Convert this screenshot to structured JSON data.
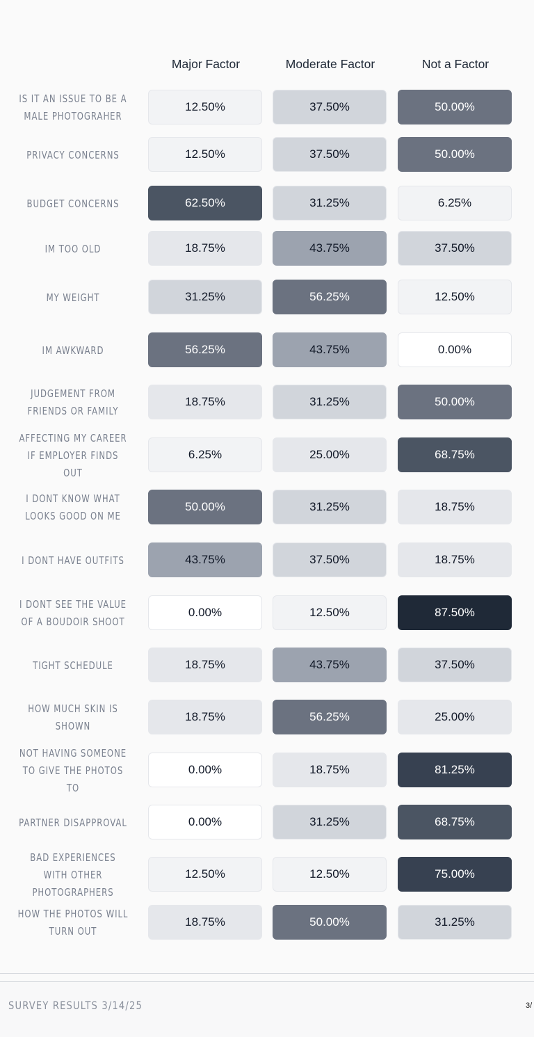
{
  "columns": [
    "Major Factor",
    "Moderate Factor",
    "Not a Factor"
  ],
  "rows": [
    {
      "label": "IS IT AN ISSUE TO BE A MALE PHOTOGRAHER",
      "cells": [
        "12.50%",
        "37.50%",
        "50.00%"
      ]
    },
    {
      "label": "PRIVACY CONCERNS",
      "cells": [
        "12.50%",
        "37.50%",
        "50.00%"
      ]
    },
    {
      "label": "BUDGET CONCERNS",
      "cells": [
        "62.50%",
        "31.25%",
        "6.25%"
      ]
    },
    {
      "label": "IM TOO OLD",
      "cells": [
        "18.75%",
        "43.75%",
        "37.50%"
      ]
    },
    {
      "label": "MY WEIGHT",
      "cells": [
        "31.25%",
        "56.25%",
        "12.50%"
      ]
    },
    {
      "label": "IM AWKWARD",
      "cells": [
        "56.25%",
        "43.75%",
        "0.00%"
      ]
    },
    {
      "label": "JUDGEMENT FROM FRIENDS OR FAMILY",
      "cells": [
        "18.75%",
        "31.25%",
        "50.00%"
      ]
    },
    {
      "label": "AFFECTING MY CAREER IF EMPLOYER FINDS OUT",
      "cells": [
        "6.25%",
        "25.00%",
        "68.75%"
      ]
    },
    {
      "label": "I DONT KNOW WHAT LOOKS GOOD ON ME",
      "cells": [
        "50.00%",
        "31.25%",
        "18.75%"
      ]
    },
    {
      "label": "I DONT HAVE OUTFITS",
      "cells": [
        "43.75%",
        "37.50%",
        "18.75%"
      ]
    },
    {
      "label": "I DONT SEE THE VALUE OF A BOUDOIR SHOOT",
      "cells": [
        "0.00%",
        "12.50%",
        "87.50%"
      ]
    },
    {
      "label": "TIGHT SCHEDULE",
      "cells": [
        "18.75%",
        "43.75%",
        "37.50%"
      ]
    },
    {
      "label": "HOW MUCH SKIN IS SHOWN",
      "cells": [
        "18.75%",
        "56.25%",
        "25.00%"
      ]
    },
    {
      "label": "NOT HAVING SOMEONE TO GIVE THE PHOTOS TO",
      "cells": [
        "0.00%",
        "18.75%",
        "81.25%"
      ]
    },
    {
      "label": "PARTNER DISAPPROVAL",
      "cells": [
        "0.00%",
        "31.25%",
        "68.75%"
      ]
    },
    {
      "label": "BAD EXPERIENCES WITH OTHER PHOTOGRAPHERS",
      "cells": [
        "12.50%",
        "12.50%",
        "75.00%"
      ]
    },
    {
      "label": "HOW THE PHOTOS WILL TURN OUT",
      "cells": [
        "18.75%",
        "50.00%",
        "31.25%"
      ]
    }
  ],
  "footer": {
    "text": "SURVEY RESULTS 3/14/25",
    "page": "3/"
  },
  "chart_data": {
    "type": "heatmap",
    "x_categories": [
      "Major Factor",
      "Moderate Factor",
      "Not a Factor"
    ],
    "y_categories": [
      "IS IT AN ISSUE TO BE A MALE PHOTOGRAHER",
      "PRIVACY CONCERNS",
      "BUDGET CONCERNS",
      "IM TOO OLD",
      "MY WEIGHT",
      "IM AWKWARD",
      "JUDGEMENT FROM FRIENDS OR FAMILY",
      "AFFECTING MY CAREER IF EMPLOYER FINDS OUT",
      "I DONT KNOW WHAT LOOKS GOOD ON ME",
      "I DONT HAVE OUTFITS",
      "I DONT SEE THE VALUE OF A BOUDOIR SHOOT",
      "TIGHT SCHEDULE",
      "HOW MUCH SKIN IS SHOWN",
      "NOT HAVING SOMEONE TO GIVE THE PHOTOS TO",
      "PARTNER DISAPPROVAL",
      "BAD EXPERIENCES WITH OTHER PHOTOGRAPHERS",
      "HOW THE PHOTOS WILL TURN OUT"
    ],
    "values": [
      [
        12.5,
        37.5,
        50.0
      ],
      [
        12.5,
        37.5,
        50.0
      ],
      [
        62.5,
        31.25,
        6.25
      ],
      [
        18.75,
        43.75,
        37.5
      ],
      [
        31.25,
        56.25,
        12.5
      ],
      [
        56.25,
        43.75,
        0.0
      ],
      [
        18.75,
        31.25,
        50.0
      ],
      [
        6.25,
        25.0,
        68.75
      ],
      [
        50.0,
        31.25,
        18.75
      ],
      [
        43.75,
        37.5,
        18.75
      ],
      [
        0.0,
        12.5,
        87.5
      ],
      [
        18.75,
        43.75,
        37.5
      ],
      [
        18.75,
        56.25,
        25.0
      ],
      [
        0.0,
        18.75,
        81.25
      ],
      [
        0.0,
        31.25,
        68.75
      ],
      [
        12.5,
        12.5,
        75.0
      ],
      [
        18.75,
        50.0,
        31.25
      ]
    ],
    "unit": "%",
    "colors": {
      "scale": [
        "#ffffff",
        "#f2f3f5",
        "#e5e7eb",
        "#d1d5db",
        "#9ca3af",
        "#6b7280",
        "#4b5563",
        "#374151",
        "#1f2937"
      ],
      "light_text": "#111827",
      "dark_text": "#ffffff"
    }
  }
}
